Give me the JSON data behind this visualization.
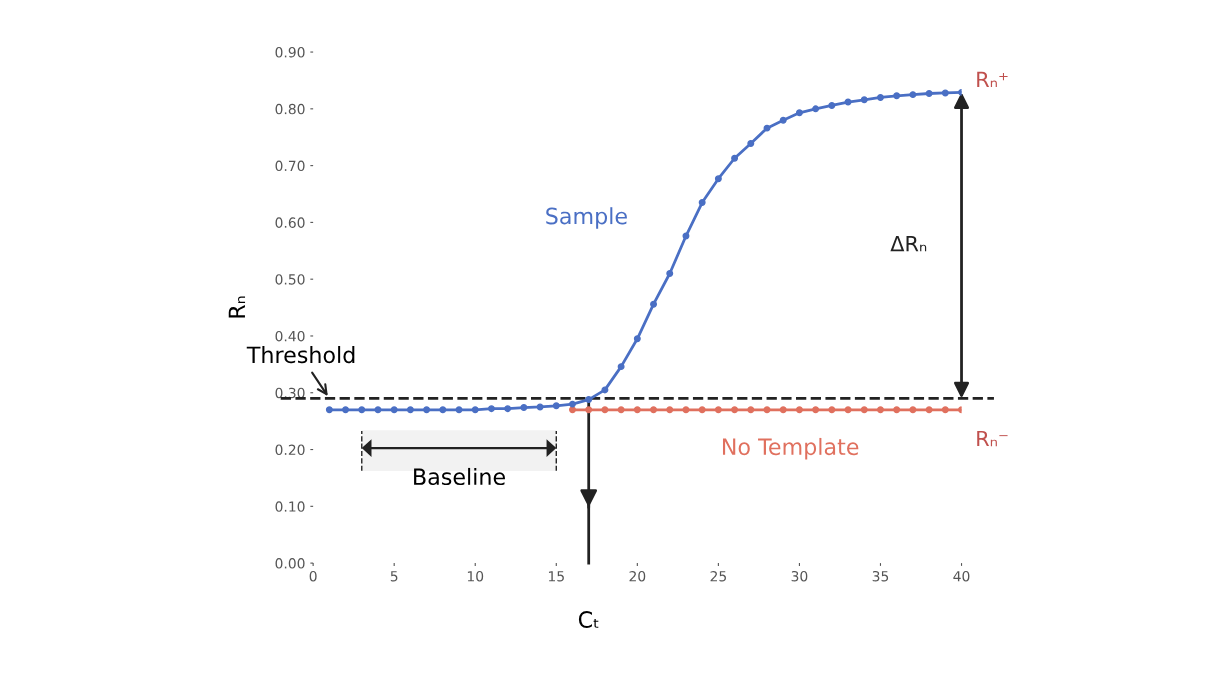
{
  "chart_data": {
    "type": "line",
    "ylabel": "Rₙ",
    "x": [
      1,
      2,
      3,
      4,
      5,
      6,
      7,
      8,
      9,
      10,
      11,
      12,
      13,
      14,
      15,
      16,
      17,
      18,
      19,
      20,
      21,
      22,
      23,
      24,
      25,
      26,
      27,
      28,
      29,
      30,
      31,
      32,
      33,
      34,
      35,
      36,
      37,
      38,
      39,
      40
    ],
    "series": [
      {
        "name": "Sample",
        "color": "#4a6fc4",
        "values": [
          0.27,
          0.27,
          0.27,
          0.27,
          0.27,
          0.27,
          0.27,
          0.27,
          0.27,
          0.27,
          0.272,
          0.272,
          0.274,
          0.275,
          0.277,
          0.28,
          0.288,
          0.305,
          0.346,
          0.395,
          0.456,
          0.51,
          0.576,
          0.635,
          0.677,
          0.713,
          0.739,
          0.766,
          0.78,
          0.793,
          0.8,
          0.806,
          0.812,
          0.816,
          0.82,
          0.823,
          0.825,
          0.827,
          0.828,
          0.829
        ]
      },
      {
        "name": "No Template",
        "color": "#e0705e",
        "values": [
          null,
          null,
          null,
          null,
          null,
          null,
          null,
          null,
          null,
          null,
          null,
          null,
          null,
          null,
          null,
          0.27,
          0.27,
          0.27,
          0.27,
          0.27,
          0.27,
          0.27,
          0.27,
          0.27,
          0.27,
          0.27,
          0.27,
          0.27,
          0.27,
          0.27,
          0.27,
          0.27,
          0.27,
          0.27,
          0.27,
          0.27,
          0.27,
          0.27,
          0.27,
          0.27
        ]
      }
    ],
    "marker": "circle",
    "line_style": "solid",
    "grid": false,
    "legend": false,
    "xlim": [
      0,
      40
    ],
    "ylim": [
      0,
      0.9
    ],
    "xticks": [
      0,
      5,
      10,
      15,
      20,
      25,
      30,
      35,
      40
    ],
    "yticks": [
      {
        "value": 0,
        "label": "0.00"
      },
      {
        "value": 0.1,
        "label": "0.10"
      },
      {
        "value": 0.2,
        "label": "0.20"
      },
      {
        "value": 0.3,
        "label": "0.30"
      },
      {
        "value": 0.4,
        "label": "0.40"
      },
      {
        "value": 0.5,
        "label": "0.50"
      },
      {
        "value": 0.6,
        "label": "0.60"
      },
      {
        "value": 0.7,
        "label": "0.70"
      },
      {
        "value": 0.8,
        "label": "0.80"
      },
      {
        "value": 0.9,
        "label": "0.90"
      }
    ],
    "ref_lines": [
      {
        "axis": "y",
        "value": 0.29,
        "label": "Threshold",
        "color": "#222222",
        "line_style": "dashed"
      },
      {
        "axis": "x",
        "value": 17,
        "label": "Cₜ",
        "color": "#222222"
      }
    ],
    "bands": [
      {
        "axis": "x",
        "from": 3,
        "to": 15,
        "label": "Baseline",
        "color": "#222222"
      }
    ],
    "annotations": [
      {
        "text": "Rₙ⁺",
        "x": 40,
        "y": 0.829
      },
      {
        "text": "Rₙ⁻",
        "x": 40,
        "y": 0.27
      },
      "ΔRₙ"
    ]
  }
}
